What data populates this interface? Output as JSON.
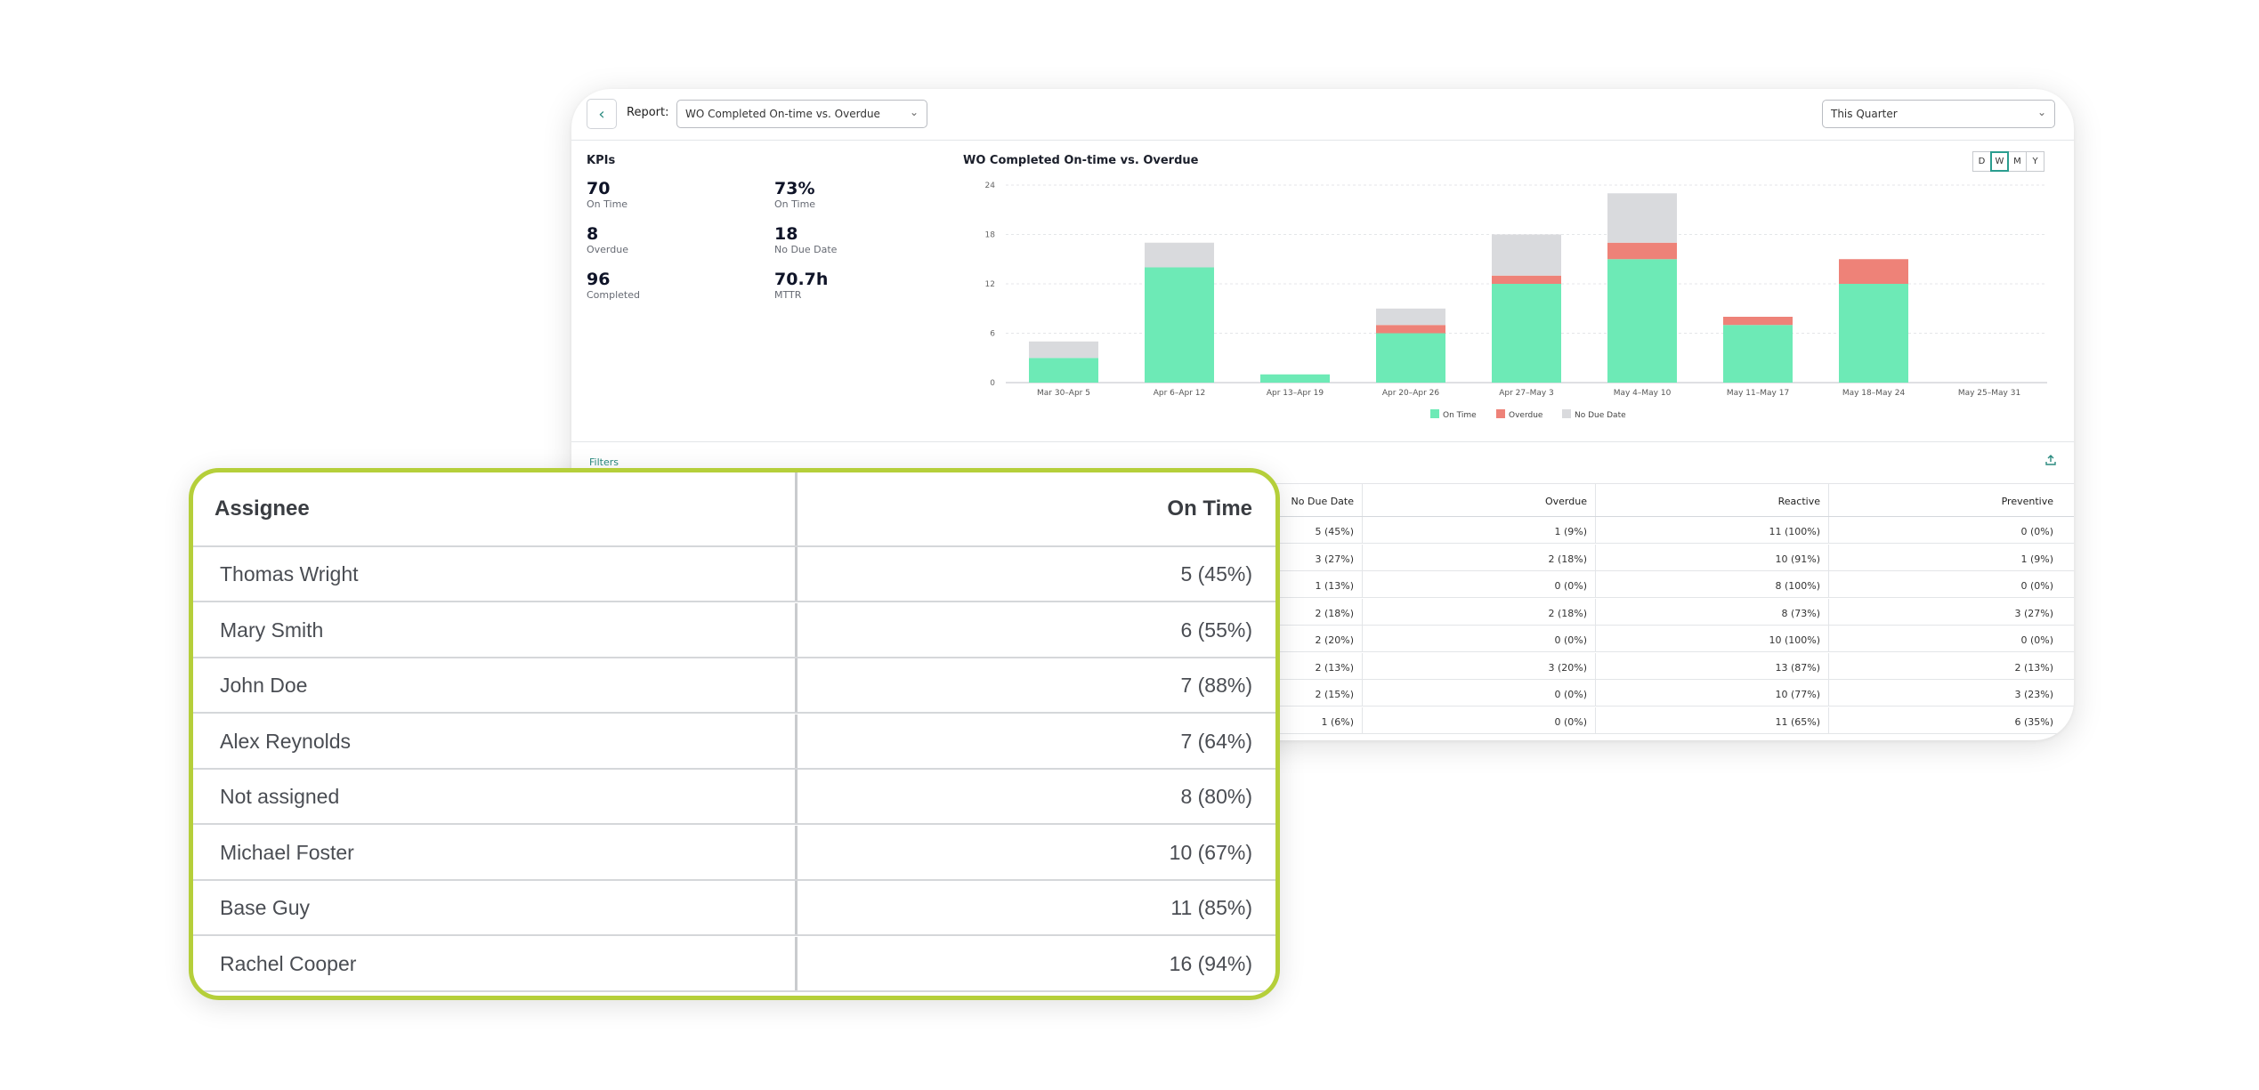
{
  "report": {
    "back_icon": "chevron-left-icon",
    "label": "Report:",
    "selected_report": "WO Completed On-time vs. Overdue",
    "date_range": "This Quarter"
  },
  "kpis": {
    "title": "KPIs",
    "items": [
      {
        "value": "70",
        "label": "On Time"
      },
      {
        "value": "73%",
        "label": "On Time"
      },
      {
        "value": "8",
        "label": "Overdue"
      },
      {
        "value": "18",
        "label": "No Due Date"
      },
      {
        "value": "96",
        "label": "Completed"
      },
      {
        "value": "70.7h",
        "label": "MTTR"
      }
    ]
  },
  "chart": {
    "title": "WO Completed On-time vs. Overdue",
    "periods": [
      "D",
      "W",
      "M",
      "Y"
    ],
    "active_period": "W"
  },
  "chart_data": {
    "type": "bar",
    "stacked": true,
    "categories": [
      "Mar 30–Apr 5",
      "Apr 6–Apr 12",
      "Apr 13–Apr 19",
      "Apr 20–Apr 26",
      "Apr 27–May 3",
      "May 4–May 10",
      "May 11–May 17",
      "May 18–May 24",
      "May 25–May 31"
    ],
    "series": [
      {
        "name": "On Time",
        "color": "#6deab6",
        "values": [
          3,
          14,
          1,
          6,
          12,
          15,
          7,
          12,
          0
        ]
      },
      {
        "name": "Overdue",
        "color": "#ee8278",
        "values": [
          0,
          0,
          0,
          1,
          1,
          2,
          1,
          3,
          0
        ]
      },
      {
        "name": "No Due Date",
        "color": "#d9dadd",
        "values": [
          2,
          3,
          0,
          2,
          5,
          6,
          0,
          0,
          0
        ]
      }
    ],
    "yticks": [
      0,
      6,
      12,
      18,
      24
    ],
    "ylim": [
      0,
      24
    ],
    "grid": true,
    "legend": "bottom-center"
  },
  "filters_label": "Filters",
  "export_icon": "upload-icon",
  "table": {
    "headers": [
      "No Due Date",
      "Overdue",
      "Reactive",
      "Preventive"
    ],
    "rows": [
      [
        "5 (45%)",
        "1 (9%)",
        "11 (100%)",
        "0 (0%)"
      ],
      [
        "3 (27%)",
        "2 (18%)",
        "10 (91%)",
        "1 (9%)"
      ],
      [
        "1 (13%)",
        "0 (0%)",
        "8 (100%)",
        "0 (0%)"
      ],
      [
        "2 (18%)",
        "2 (18%)",
        "8 (73%)",
        "3 (27%)"
      ],
      [
        "2 (20%)",
        "0 (0%)",
        "10 (100%)",
        "0 (0%)"
      ],
      [
        "2 (13%)",
        "3 (20%)",
        "13 (87%)",
        "2 (13%)"
      ],
      [
        "2 (15%)",
        "0 (0%)",
        "10 (77%)",
        "3 (23%)"
      ],
      [
        "1 (6%)",
        "0 (0%)",
        "11 (65%)",
        "6 (35%)"
      ]
    ]
  },
  "assignees": {
    "header_name": "Assignee",
    "header_value": "On Time",
    "rows": [
      {
        "name": "Thomas Wright",
        "on_time": "5 (45%)"
      },
      {
        "name": "Mary Smith",
        "on_time": "6 (55%)"
      },
      {
        "name": "John Doe",
        "on_time": "7 (88%)"
      },
      {
        "name": "Alex Reynolds",
        "on_time": "7 (64%)"
      },
      {
        "name": "Not assigned",
        "on_time": "8 (80%)"
      },
      {
        "name": "Michael Foster",
        "on_time": "10 (67%)"
      },
      {
        "name": "Base Guy",
        "on_time": "11 (85%)"
      },
      {
        "name": "Rachel Cooper",
        "on_time": "16 (94%)"
      }
    ]
  }
}
